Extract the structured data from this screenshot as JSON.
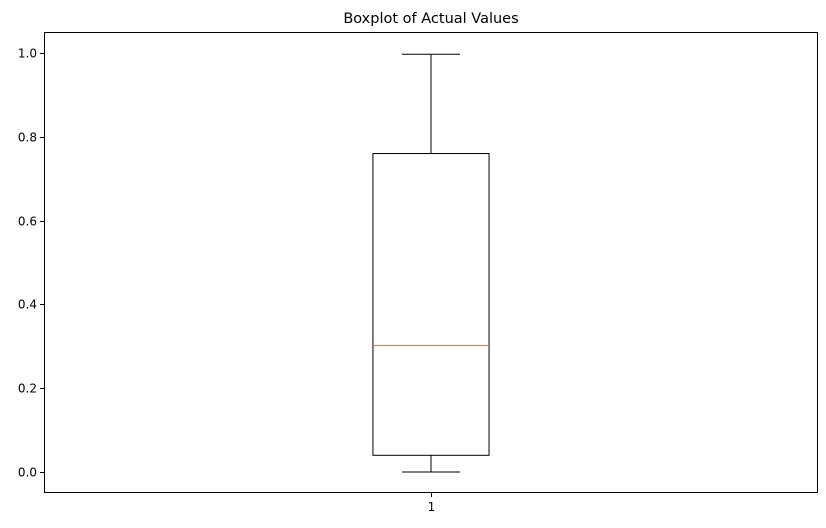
{
  "chart_data": {
    "type": "boxplot",
    "title": "Boxplot of Actual Values",
    "xlabel": "",
    "ylabel": "",
    "categories": [
      "1"
    ],
    "boxes": [
      {
        "label": "1",
        "whisker_low": 0.0,
        "q1": 0.04,
        "median": 0.302,
        "q3": 0.76,
        "whisker_high": 0.997
      }
    ],
    "yticks": [
      "0.0",
      "0.2",
      "0.4",
      "0.6",
      "0.8",
      "1.0"
    ],
    "ytick_values": [
      0.0,
      0.2,
      0.4,
      0.6,
      0.8,
      1.0
    ],
    "ylim": [
      -0.05,
      1.05
    ],
    "xlim": [
      0.5,
      1.5
    ],
    "grid": false,
    "colors": {
      "box": "#000000",
      "median": "#ff7f0e",
      "axes": "#000000"
    }
  }
}
